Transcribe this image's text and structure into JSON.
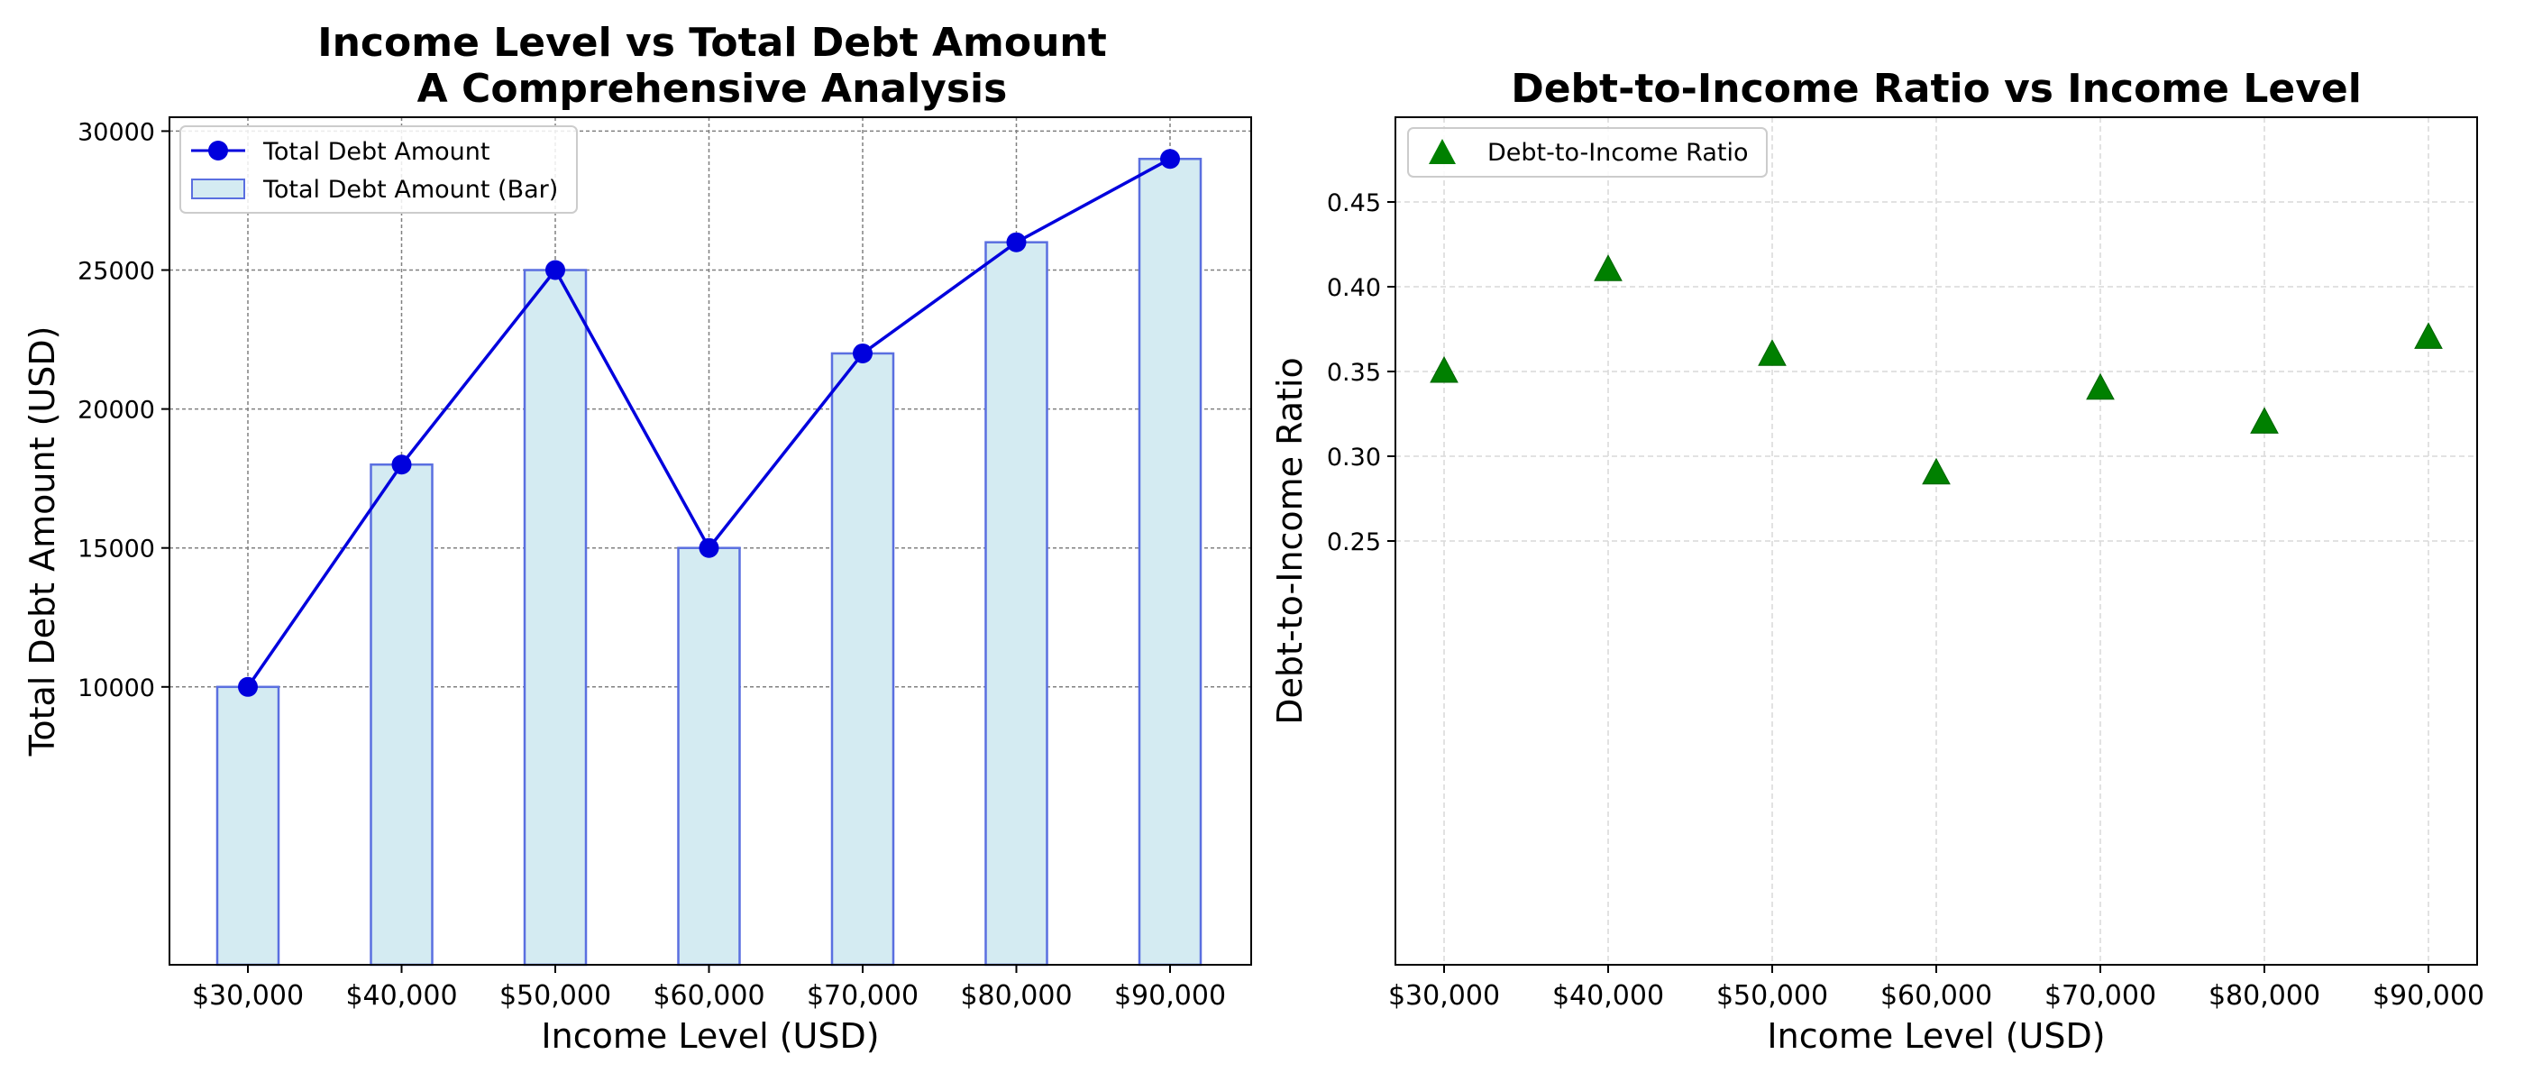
{
  "chart_data": [
    {
      "type": "bar+line",
      "title_line1": "Income Level vs Total Debt Amount",
      "title_line2": "A Comprehensive Analysis",
      "xlabel": "Income Level (USD)",
      "ylabel": "Total Debt Amount (USD)",
      "categories": [
        "$30,000",
        "$40,000",
        "$50,000",
        "$60,000",
        "$70,000",
        "$80,000",
        "$90,000"
      ],
      "series": [
        {
          "name": "Total Debt Amount",
          "kind": "line",
          "color": "#0000dd",
          "values": [
            10000,
            18000,
            25000,
            15000,
            22000,
            26000,
            29000
          ]
        },
        {
          "name": "Total Debt Amount (Bar)",
          "kind": "bar",
          "color": "#d4ebf2",
          "edge": "#5a6fe0",
          "values": [
            10000,
            18000,
            25000,
            15000,
            22000,
            26000,
            29000
          ]
        }
      ],
      "ylim": [
        0,
        30500
      ],
      "yticks": [
        10000,
        15000,
        20000,
        25000,
        30000
      ],
      "grid": true,
      "legend_position": "top-left"
    },
    {
      "type": "scatter",
      "title": "Debt-to-Income Ratio vs Income Level",
      "xlabel": "Income Level (USD)",
      "ylabel": "Debt-to-Income Ratio",
      "categories": [
        "$30,000",
        "$40,000",
        "$50,000",
        "$60,000",
        "$70,000",
        "$80,000",
        "$90,000"
      ],
      "series": [
        {
          "name": "Debt-to-Income Ratio",
          "marker": "triangle",
          "color": "#008000",
          "values": [
            0.35,
            0.41,
            0.36,
            0.29,
            0.34,
            0.32,
            0.37
          ]
        }
      ],
      "ylim": [
        0.0,
        0.5
      ],
      "yticks": [
        0.25,
        0.3,
        0.35,
        0.4,
        0.45
      ],
      "ytick_labels": [
        "0.25",
        "0.30",
        "0.35",
        "0.40",
        "0.45"
      ],
      "grid": true,
      "legend_position": "top-left"
    }
  ]
}
